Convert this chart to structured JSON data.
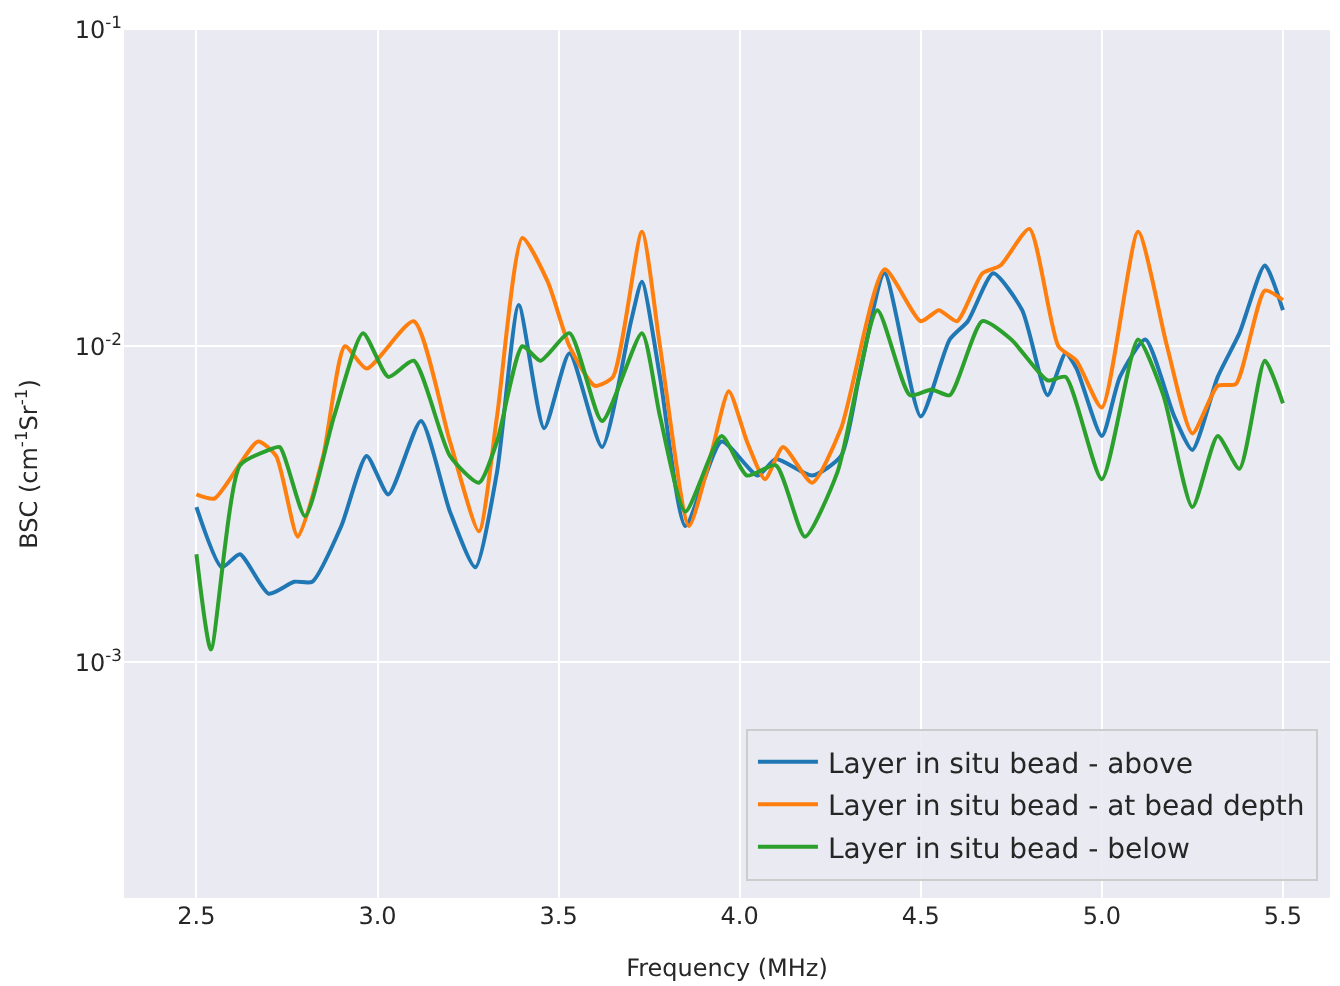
{
  "chart_data": {
    "type": "line",
    "xlabel": "Frequency (MHz)",
    "ylabel": "BSC (cm$^{-1}$Sr$^{-1}$)",
    "log": "y",
    "grid": true,
    "legend": "bottom right",
    "line_style": "solid",
    "marker": "none",
    "xlim": [
      2.3,
      5.63
    ],
    "ylim": [
      0.00018,
      0.1
    ],
    "xticks": [
      2.5,
      {
        "value": 3,
        "label": "3.0"
      },
      3.5,
      {
        "value": 4,
        "label": "4.0"
      },
      4.5,
      {
        "value": 5,
        "label": "5.0"
      },
      5.5
    ],
    "yticks": [
      {
        "value": 0.001,
        "label": "10$^{-3}$"
      },
      {
        "value": 0.01,
        "label": "10$^{-2}$"
      },
      {
        "value": 0.1,
        "label": "10$^{-1}$"
      }
    ],
    "series": [
      {
        "name": "Layer in situ bead - above",
        "color": "#1f77b4",
        "x": [
          2.5,
          2.57,
          2.62,
          2.7,
          2.77,
          2.82,
          2.9,
          2.97,
          3.03,
          3.12,
          3.2,
          3.27,
          3.33,
          3.39,
          3.46,
          3.53,
          3.62,
          3.7,
          3.73,
          3.78,
          3.85,
          3.95,
          4.05,
          4.1,
          4.2,
          4.28,
          4.33,
          4.4,
          4.5,
          4.58,
          4.63,
          4.7,
          4.78,
          4.85,
          4.9,
          4.93,
          5.0,
          5.05,
          5.12,
          5.2,
          5.25,
          5.32,
          5.38,
          5.45,
          5.5
        ],
        "values": [
          0.0031,
          0.002,
          0.0022,
          0.00165,
          0.0018,
          0.0018,
          0.0027,
          0.0045,
          0.0034,
          0.0058,
          0.003,
          0.002,
          0.004,
          0.0135,
          0.0055,
          0.0095,
          0.0048,
          0.012,
          0.016,
          0.008,
          0.0027,
          0.005,
          0.0039,
          0.0044,
          0.0039,
          0.0045,
          0.008,
          0.017,
          0.006,
          0.0105,
          0.012,
          0.017,
          0.013,
          0.007,
          0.0095,
          0.0085,
          0.0052,
          0.008,
          0.0105,
          0.006,
          0.0047,
          0.008,
          0.011,
          0.018,
          0.013
        ]
      },
      {
        "name": "Layer in situ bead - at bead depth",
        "color": "#ff7f0e",
        "x": [
          2.5,
          2.55,
          2.67,
          2.72,
          2.78,
          2.85,
          2.91,
          2.97,
          3.1,
          3.2,
          3.28,
          3.33,
          3.4,
          3.47,
          3.53,
          3.6,
          3.65,
          3.73,
          3.78,
          3.86,
          3.92,
          3.97,
          4.02,
          4.07,
          4.12,
          4.2,
          4.28,
          4.4,
          4.5,
          4.55,
          4.6,
          4.67,
          4.72,
          4.8,
          4.88,
          4.93,
          5.0,
          5.1,
          5.18,
          5.25,
          5.32,
          5.37,
          5.45,
          5.5
        ],
        "values": [
          0.0034,
          0.0033,
          0.005,
          0.0045,
          0.0025,
          0.0045,
          0.01,
          0.0085,
          0.012,
          0.005,
          0.0026,
          0.006,
          0.022,
          0.016,
          0.01,
          0.0075,
          0.008,
          0.023,
          0.01,
          0.0027,
          0.0045,
          0.0072,
          0.005,
          0.0038,
          0.0048,
          0.0037,
          0.0055,
          0.0175,
          0.012,
          0.013,
          0.012,
          0.017,
          0.018,
          0.0235,
          0.01,
          0.009,
          0.0064,
          0.023,
          0.01,
          0.0053,
          0.0075,
          0.0076,
          0.015,
          0.014
        ]
      },
      {
        "name": "Layer in situ bead - below",
        "color": "#2ca02c",
        "x": [
          2.5,
          2.54,
          2.62,
          2.7,
          2.73,
          2.8,
          2.88,
          2.96,
          3.03,
          3.1,
          3.2,
          3.28,
          3.33,
          3.4,
          3.45,
          3.53,
          3.62,
          3.73,
          3.78,
          3.85,
          3.95,
          4.02,
          4.1,
          4.18,
          4.27,
          4.38,
          4.47,
          4.53,
          4.58,
          4.67,
          4.75,
          4.85,
          4.9,
          5.0,
          5.1,
          5.17,
          5.25,
          5.32,
          5.38,
          5.45,
          5.5
        ],
        "values": [
          0.0022,
          0.0011,
          0.0042,
          0.0047,
          0.0048,
          0.0029,
          0.006,
          0.011,
          0.008,
          0.009,
          0.0045,
          0.0037,
          0.005,
          0.01,
          0.009,
          0.011,
          0.0058,
          0.011,
          0.006,
          0.003,
          0.0052,
          0.0039,
          0.0042,
          0.0025,
          0.004,
          0.013,
          0.007,
          0.0073,
          0.007,
          0.012,
          0.0105,
          0.0078,
          0.008,
          0.0038,
          0.0105,
          0.007,
          0.0031,
          0.0052,
          0.0041,
          0.009,
          0.0066
        ]
      }
    ]
  }
}
